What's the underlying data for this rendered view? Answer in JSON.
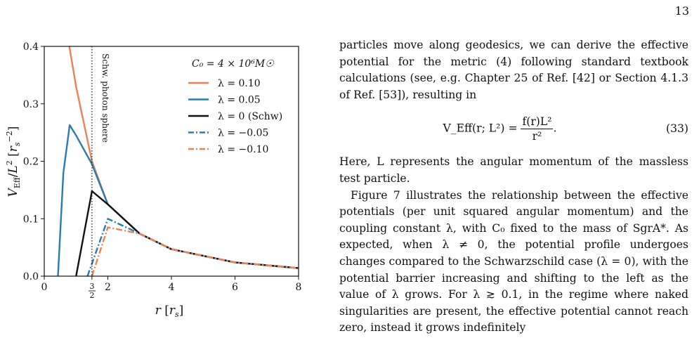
{
  "page": {
    "number": "13"
  },
  "figure": {
    "photon_sphere_label": "Schw. photon sphere",
    "x_tick_labels": [
      "0",
      "2",
      "4",
      "6",
      "8"
    ],
    "photon_sphere_tick": {
      "num": "3",
      "den": "2"
    },
    "y_tick_labels": [
      "0.0",
      "0.1",
      "0.2",
      "0.3",
      "0.4"
    ],
    "legend_title": "C₀ = 4 × 10⁶M☉",
    "colors": {
      "orange": "#ee8058",
      "blue": "#2a7bb0",
      "black": "#111111"
    }
  },
  "chart_data": {
    "type": "line",
    "xlabel": "r [r_s]",
    "ylabel": "V_Eff / L² [r_s⁻²]",
    "xlim": [
      0,
      8
    ],
    "ylim": [
      0,
      0.4
    ],
    "xticks": [
      0,
      2,
      4,
      6,
      8
    ],
    "yticks": [
      0.0,
      0.1,
      0.2,
      0.3,
      0.4
    ],
    "vline": {
      "x": 1.5,
      "label": "Schw. photon sphere",
      "style": "dotted"
    },
    "legend_title": "C₀ = 4 × 10⁶M☉",
    "legend_position": "top-right",
    "series": [
      {
        "name": "λ = 0.10",
        "lambda": 0.1,
        "color": "#ee8058",
        "dash": "solid",
        "points": [
          [
            0.79,
            0.4
          ],
          [
            1.0,
            0.33
          ],
          [
            1.5,
            0.2
          ],
          [
            2.0,
            0.125
          ],
          [
            3.0,
            0.074
          ],
          [
            4.0,
            0.047
          ],
          [
            6.0,
            0.024
          ],
          [
            8.0,
            0.014
          ]
        ]
      },
      {
        "name": "λ = 0.05",
        "lambda": 0.05,
        "color": "#2a7bb0",
        "dash": "solid",
        "points": [
          [
            0.43,
            0.0
          ],
          [
            0.6,
            0.18
          ],
          [
            0.8,
            0.263
          ],
          [
            1.0,
            0.245
          ],
          [
            1.5,
            0.195
          ],
          [
            2.0,
            0.125
          ],
          [
            3.0,
            0.074
          ],
          [
            4.0,
            0.047
          ],
          [
            6.0,
            0.024
          ],
          [
            8.0,
            0.014
          ]
        ]
      },
      {
        "name": "λ = 0 (Schw)",
        "lambda": 0.0,
        "color": "#111111",
        "dash": "solid",
        "points": [
          [
            1.0,
            0.0
          ],
          [
            1.5,
            0.148
          ],
          [
            2.0,
            0.125
          ],
          [
            3.0,
            0.074
          ],
          [
            4.0,
            0.047
          ],
          [
            6.0,
            0.024
          ],
          [
            8.0,
            0.014
          ]
        ]
      },
      {
        "name": "λ = −0.05",
        "lambda": -0.05,
        "color": "#2a7bb0",
        "dash": "dashdot",
        "points": [
          [
            1.36,
            0.0
          ],
          [
            2.0,
            0.1
          ],
          [
            3.0,
            0.074
          ],
          [
            4.0,
            0.047
          ],
          [
            6.0,
            0.024
          ],
          [
            8.0,
            0.014
          ]
        ]
      },
      {
        "name": "λ = −0.10",
        "lambda": -0.1,
        "color": "#ee8058",
        "dash": "dashdot",
        "points": [
          [
            1.5,
            0.0
          ],
          [
            2.0,
            0.085
          ],
          [
            3.0,
            0.074
          ],
          [
            4.0,
            0.047
          ],
          [
            6.0,
            0.024
          ],
          [
            8.0,
            0.014
          ]
        ]
      }
    ]
  },
  "text": {
    "para1": "particles move along geodesics, we can derive the effective potential for the metric (4) following standard textbook calculations (see, e.g. Chapter 25 of Ref. [42] or Section 4.1.3 of Ref. [53]), resulting in",
    "equation": {
      "lhs": "V_Eff(r; L²) =",
      "numerator": "f(r)L²",
      "denominator": "r²",
      "trail": ".",
      "number": "(33)"
    },
    "para2": "Here, L represents the angular momentum of the massless test particle.",
    "para3": "Figure 7 illustrates the relationship between the effective potentials (per unit squared angular momentum) and the coupling constant λ, with C₀ fixed to the mass of SgrA*. As expected, when λ ≠ 0, the potential profile undergoes changes compared to the Schwarzschild case (λ = 0), with the potential barrier increasing and shifting to the left as the value of λ grows. For λ ≳ 0.1, in the regime where naked singularities are present, the effective potential cannot reach zero, instead it grows indefinitely"
  }
}
